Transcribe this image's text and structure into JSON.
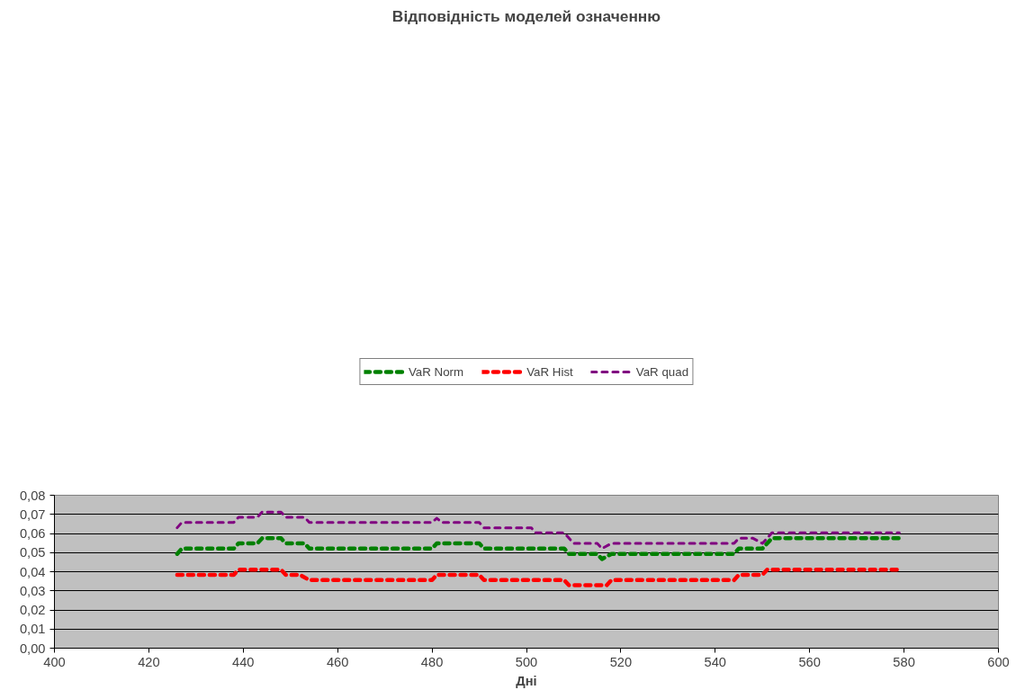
{
  "chart_data": {
    "type": "line",
    "title": "Відповідність моделей означенню",
    "xlabel": "Дні",
    "xlim": [
      400,
      600
    ],
    "xticks": [
      400,
      420,
      440,
      460,
      480,
      500,
      520,
      540,
      560,
      580,
      600
    ],
    "ylim": [
      0,
      0.08
    ],
    "yticks": [
      {
        "value": 0,
        "label": "0,00"
      },
      {
        "value": 0.01,
        "label": "0,01"
      },
      {
        "value": 0.02,
        "label": "0,02"
      },
      {
        "value": 0.03,
        "label": "0,03"
      },
      {
        "value": 0.04,
        "label": "0,04"
      },
      {
        "value": 0.05,
        "label": "0,05"
      },
      {
        "value": 0.06,
        "label": "0,06"
      },
      {
        "value": 0.07,
        "label": "0,07"
      },
      {
        "value": 0.08,
        "label": "0,08"
      }
    ],
    "grid": "y",
    "legend": "top",
    "marker": "none",
    "line_style": "dashed",
    "series": [
      {
        "name": "VaR Norm",
        "color": "#008000",
        "x": [
          426,
          427,
          438,
          439,
          443,
          444,
          448,
          449,
          453,
          454,
          480,
          481,
          490,
          491,
          508,
          509,
          515,
          516,
          518,
          544,
          545,
          550,
          552,
          579
        ],
        "values": [
          0.0493,
          0.0521,
          0.0521,
          0.0548,
          0.0548,
          0.0575,
          0.0575,
          0.0548,
          0.0548,
          0.0521,
          0.0521,
          0.0548,
          0.0548,
          0.0521,
          0.0521,
          0.0493,
          0.0493,
          0.0466,
          0.0493,
          0.0493,
          0.0521,
          0.0521,
          0.0575,
          0.0575
        ]
      },
      {
        "name": "VaR Hist",
        "color": "#ff0000",
        "x": [
          426,
          438,
          439,
          448,
          449,
          452,
          454,
          480,
          481,
          490,
          491,
          508,
          509,
          517,
          518,
          544,
          545,
          550,
          551,
          579
        ],
        "values": [
          0.0384,
          0.0384,
          0.0411,
          0.0411,
          0.0384,
          0.0384,
          0.0356,
          0.0356,
          0.0384,
          0.0384,
          0.0356,
          0.0356,
          0.0329,
          0.0329,
          0.0356,
          0.0356,
          0.0384,
          0.0384,
          0.0411,
          0.0411
        ]
      },
      {
        "name": "VaR quad",
        "color": "#800080",
        "x": [
          426,
          427,
          438,
          439,
          443,
          444,
          448,
          449,
          453,
          454,
          480,
          481,
          482,
          490,
          491,
          501,
          502,
          508,
          510,
          515,
          516,
          518,
          544,
          545,
          548,
          550,
          552,
          579
        ],
        "values": [
          0.063,
          0.0658,
          0.0658,
          0.0685,
          0.0685,
          0.0712,
          0.0712,
          0.0685,
          0.0685,
          0.0658,
          0.0658,
          0.068,
          0.0658,
          0.0658,
          0.063,
          0.063,
          0.0603,
          0.0603,
          0.0548,
          0.0548,
          0.0521,
          0.0548,
          0.0548,
          0.0575,
          0.0575,
          0.0548,
          0.0603,
          0.0603
        ]
      }
    ]
  }
}
